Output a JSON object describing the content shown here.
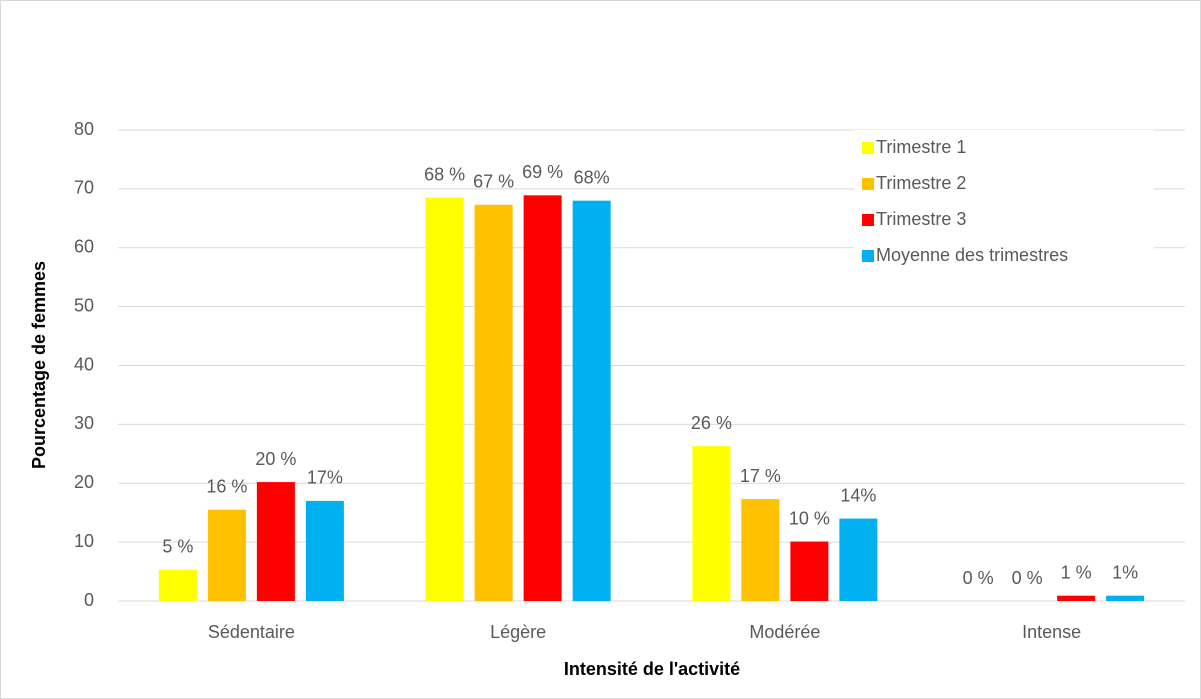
{
  "chart_data": {
    "type": "bar",
    "x_label": "Intensité de l'activité",
    "y_label": "Pourcentage de femmes",
    "categories": [
      "Sédentaire",
      "Légère",
      "Modérée",
      "Intense"
    ],
    "series": [
      {
        "name": "Trimestre 1",
        "color": "#ffff00",
        "values": [
          5.3,
          68.5,
          26.3,
          0
        ],
        "value_labels": [
          "5 %",
          "68 %",
          "26 %",
          "0 %"
        ]
      },
      {
        "name": "Trimestre 2",
        "color": "#ffc000",
        "values": [
          15.5,
          67.3,
          17.3,
          0
        ],
        "value_labels": [
          "16 %",
          "67 %",
          "17 %",
          "0 %"
        ]
      },
      {
        "name": "Trimestre 3",
        "color": "#ff0000",
        "values": [
          20.2,
          68.9,
          10.1,
          0.9
        ],
        "value_labels": [
          "20 %",
          "69 %",
          "10 %",
          "1 %"
        ]
      },
      {
        "name": "Moyenne des trimestres",
        "color": "#00b0f0",
        "values": [
          17,
          68,
          14,
          0.9
        ],
        "value_labels": [
          "17%",
          "68%",
          "14%",
          "1%"
        ]
      }
    ],
    "ylim": [
      0,
      80
    ],
    "yticks": [
      0,
      10,
      20,
      30,
      40,
      50,
      60,
      70,
      80
    ],
    "grid": true,
    "legend": "top-right"
  }
}
